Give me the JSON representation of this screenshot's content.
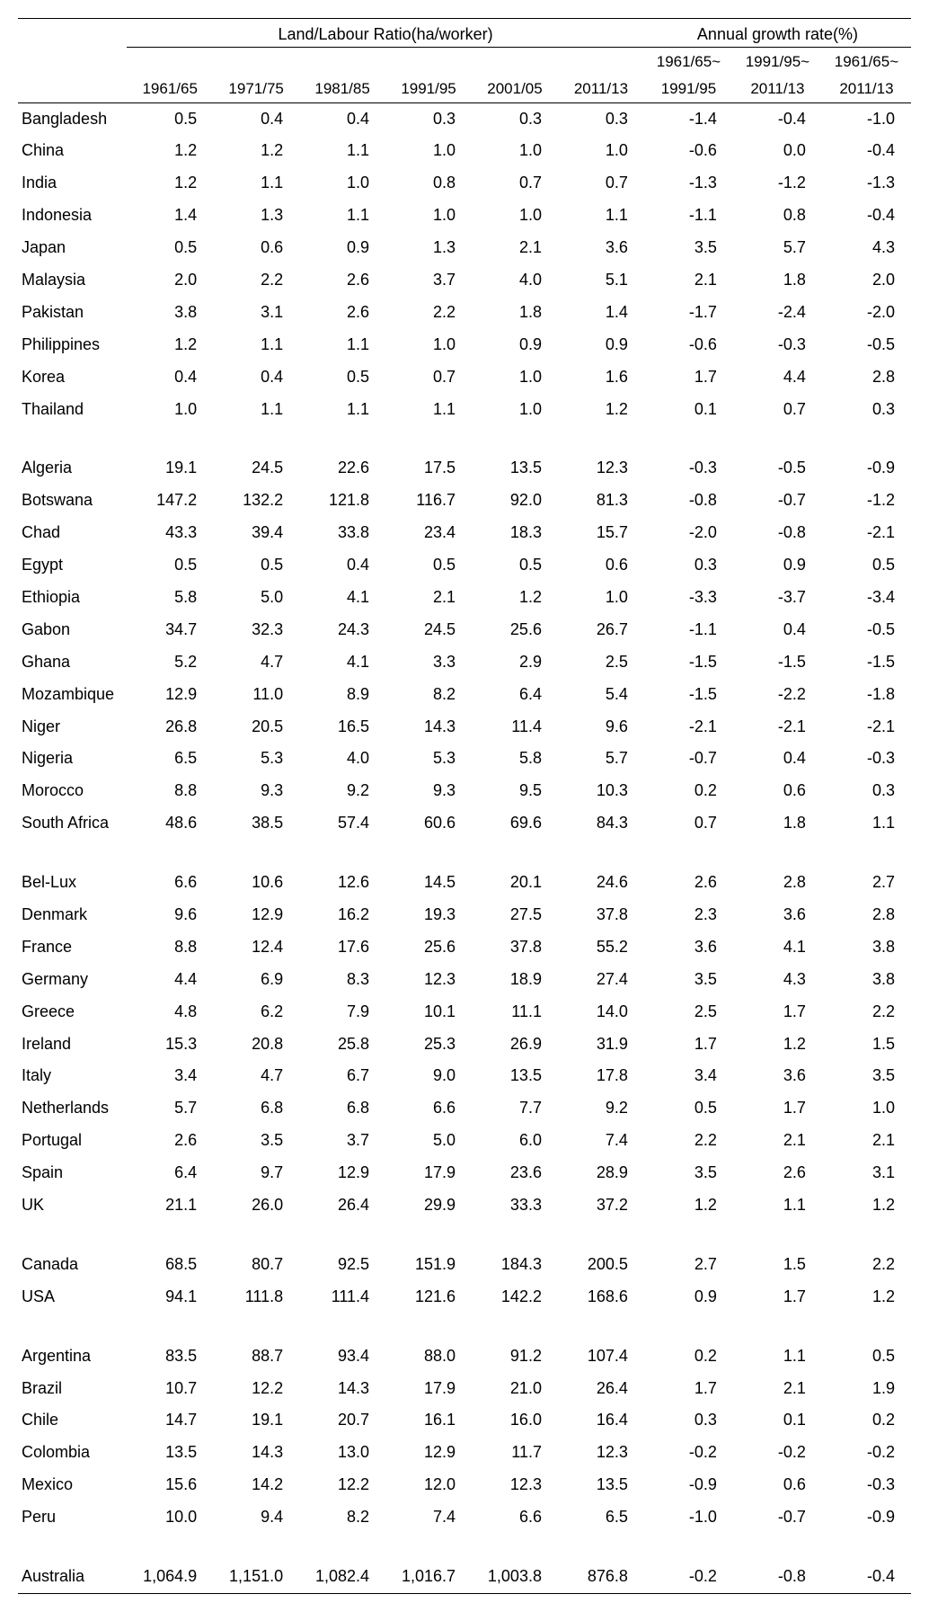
{
  "table": {
    "type": "table",
    "background_color": "#ffffff",
    "text_color": "#000000",
    "rule_color": "#000000",
    "font_family": "Segoe UI / sans-serif",
    "base_fontsize_pt": 13,
    "header": {
      "group_ratio_label": "Land/Labour Ratio(ha/worker)",
      "group_growth_label": "Annual growth rate(%)",
      "ratio_periods": [
        "1961/65",
        "1971/75",
        "1981/85",
        "1991/95",
        "2001/05",
        "2011/13"
      ],
      "growth_periods": [
        {
          "line1": "1961/65~",
          "line2": "1991/95"
        },
        {
          "line1": "1991/95~",
          "line2": "2011/13"
        },
        {
          "line1": "1961/65~",
          "line2": "2011/13"
        }
      ]
    },
    "columns": [
      "country",
      "r1961_65",
      "r1971_75",
      "r1981_85",
      "r1991_95",
      "r2001_05",
      "r2011_13",
      "g1961_1991",
      "g1991_2011",
      "g1961_2011"
    ],
    "groups": [
      {
        "rows": [
          {
            "country": "Bangladesh",
            "r": [
              "0.5",
              "0.4",
              "0.4",
              "0.3",
              "0.3",
              "0.3"
            ],
            "g": [
              "-1.4",
              "-0.4",
              "-1.0"
            ]
          },
          {
            "country": "China",
            "r": [
              "1.2",
              "1.2",
              "1.1",
              "1.0",
              "1.0",
              "1.0"
            ],
            "g": [
              "-0.6",
              "0.0",
              "-0.4"
            ]
          },
          {
            "country": "India",
            "r": [
              "1.2",
              "1.1",
              "1.0",
              "0.8",
              "0.7",
              "0.7"
            ],
            "g": [
              "-1.3",
              "-1.2",
              "-1.3"
            ]
          },
          {
            "country": "Indonesia",
            "r": [
              "1.4",
              "1.3",
              "1.1",
              "1.0",
              "1.0",
              "1.1"
            ],
            "g": [
              "-1.1",
              "0.8",
              "-0.4"
            ]
          },
          {
            "country": "Japan",
            "r": [
              "0.5",
              "0.6",
              "0.9",
              "1.3",
              "2.1",
              "3.6"
            ],
            "g": [
              "3.5",
              "5.7",
              "4.3"
            ]
          },
          {
            "country": "Malaysia",
            "r": [
              "2.0",
              "2.2",
              "2.6",
              "3.7",
              "4.0",
              "5.1"
            ],
            "g": [
              "2.1",
              "1.8",
              "2.0"
            ]
          },
          {
            "country": "Pakistan",
            "r": [
              "3.8",
              "3.1",
              "2.6",
              "2.2",
              "1.8",
              "1.4"
            ],
            "g": [
              "-1.7",
              "-2.4",
              "-2.0"
            ]
          },
          {
            "country": "Philippines",
            "r": [
              "1.2",
              "1.1",
              "1.1",
              "1.0",
              "0.9",
              "0.9"
            ],
            "g": [
              "-0.6",
              "-0.3",
              "-0.5"
            ]
          },
          {
            "country": "Korea",
            "r": [
              "0.4",
              "0.4",
              "0.5",
              "0.7",
              "1.0",
              "1.6"
            ],
            "g": [
              "1.7",
              "4.4",
              "2.8"
            ]
          },
          {
            "country": "Thailand",
            "r": [
              "1.0",
              "1.1",
              "1.1",
              "1.1",
              "1.0",
              "1.2"
            ],
            "g": [
              "0.1",
              "0.7",
              "0.3"
            ]
          }
        ]
      },
      {
        "rows": [
          {
            "country": "Algeria",
            "r": [
              "19.1",
              "24.5",
              "22.6",
              "17.5",
              "13.5",
              "12.3"
            ],
            "g": [
              "-0.3",
              "-0.5",
              "-0.9"
            ]
          },
          {
            "country": "Botswana",
            "r": [
              "147.2",
              "132.2",
              "121.8",
              "116.7",
              "92.0",
              "81.3"
            ],
            "g": [
              "-0.8",
              "-0.7",
              "-1.2"
            ]
          },
          {
            "country": "Chad",
            "r": [
              "43.3",
              "39.4",
              "33.8",
              "23.4",
              "18.3",
              "15.7"
            ],
            "g": [
              "-2.0",
              "-0.8",
              "-2.1"
            ]
          },
          {
            "country": "Egypt",
            "r": [
              "0.5",
              "0.5",
              "0.4",
              "0.5",
              "0.5",
              "0.6"
            ],
            "g": [
              "0.3",
              "0.9",
              "0.5"
            ]
          },
          {
            "country": "Ethiopia",
            "r": [
              "5.8",
              "5.0",
              "4.1",
              "2.1",
              "1.2",
              "1.0"
            ],
            "g": [
              "-3.3",
              "-3.7",
              "-3.4"
            ]
          },
          {
            "country": "Gabon",
            "r": [
              "34.7",
              "32.3",
              "24.3",
              "24.5",
              "25.6",
              "26.7"
            ],
            "g": [
              "-1.1",
              "0.4",
              "-0.5"
            ]
          },
          {
            "country": "Ghana",
            "r": [
              "5.2",
              "4.7",
              "4.1",
              "3.3",
              "2.9",
              "2.5"
            ],
            "g": [
              "-1.5",
              "-1.5",
              "-1.5"
            ]
          },
          {
            "country": "Mozambique",
            "r": [
              "12.9",
              "11.0",
              "8.9",
              "8.2",
              "6.4",
              "5.4"
            ],
            "g": [
              "-1.5",
              "-2.2",
              "-1.8"
            ]
          },
          {
            "country": "Niger",
            "r": [
              "26.8",
              "20.5",
              "16.5",
              "14.3",
              "11.4",
              "9.6"
            ],
            "g": [
              "-2.1",
              "-2.1",
              "-2.1"
            ]
          },
          {
            "country": "Nigeria",
            "r": [
              "6.5",
              "5.3",
              "4.0",
              "5.3",
              "5.8",
              "5.7"
            ],
            "g": [
              "-0.7",
              "0.4",
              "-0.3"
            ]
          },
          {
            "country": "Morocco",
            "r": [
              "8.8",
              "9.3",
              "9.2",
              "9.3",
              "9.5",
              "10.3"
            ],
            "g": [
              "0.2",
              "0.6",
              "0.3"
            ]
          },
          {
            "country": "South Africa",
            "r": [
              "48.6",
              "38.5",
              "57.4",
              "60.6",
              "69.6",
              "84.3"
            ],
            "g": [
              "0.7",
              "1.8",
              "1.1"
            ]
          }
        ]
      },
      {
        "rows": [
          {
            "country": "Bel-Lux",
            "r": [
              "6.6",
              "10.6",
              "12.6",
              "14.5",
              "20.1",
              "24.6"
            ],
            "g": [
              "2.6",
              "2.8",
              "2.7"
            ]
          },
          {
            "country": "Denmark",
            "r": [
              "9.6",
              "12.9",
              "16.2",
              "19.3",
              "27.5",
              "37.8"
            ],
            "g": [
              "2.3",
              "3.6",
              "2.8"
            ]
          },
          {
            "country": "France",
            "r": [
              "8.8",
              "12.4",
              "17.6",
              "25.6",
              "37.8",
              "55.2"
            ],
            "g": [
              "3.6",
              "4.1",
              "3.8"
            ]
          },
          {
            "country": "Germany",
            "r": [
              "4.4",
              "6.9",
              "8.3",
              "12.3",
              "18.9",
              "27.4"
            ],
            "g": [
              "3.5",
              "4.3",
              "3.8"
            ]
          },
          {
            "country": "Greece",
            "r": [
              "4.8",
              "6.2",
              "7.9",
              "10.1",
              "11.1",
              "14.0"
            ],
            "g": [
              "2.5",
              "1.7",
              "2.2"
            ]
          },
          {
            "country": "Ireland",
            "r": [
              "15.3",
              "20.8",
              "25.8",
              "25.3",
              "26.9",
              "31.9"
            ],
            "g": [
              "1.7",
              "1.2",
              "1.5"
            ]
          },
          {
            "country": "Italy",
            "r": [
              "3.4",
              "4.7",
              "6.7",
              "9.0",
              "13.5",
              "17.8"
            ],
            "g": [
              "3.4",
              "3.6",
              "3.5"
            ]
          },
          {
            "country": "Netherlands",
            "r": [
              "5.7",
              "6.8",
              "6.8",
              "6.6",
              "7.7",
              "9.2"
            ],
            "g": [
              "0.5",
              "1.7",
              "1.0"
            ]
          },
          {
            "country": "Portugal",
            "r": [
              "2.6",
              "3.5",
              "3.7",
              "5.0",
              "6.0",
              "7.4"
            ],
            "g": [
              "2.2",
              "2.1",
              "2.1"
            ]
          },
          {
            "country": "Spain",
            "r": [
              "6.4",
              "9.7",
              "12.9",
              "17.9",
              "23.6",
              "28.9"
            ],
            "g": [
              "3.5",
              "2.6",
              "3.1"
            ]
          },
          {
            "country": "UK",
            "r": [
              "21.1",
              "26.0",
              "26.4",
              "29.9",
              "33.3",
              "37.2"
            ],
            "g": [
              "1.2",
              "1.1",
              "1.2"
            ]
          }
        ]
      },
      {
        "rows": [
          {
            "country": "Canada",
            "r": [
              "68.5",
              "80.7",
              "92.5",
              "151.9",
              "184.3",
              "200.5"
            ],
            "g": [
              "2.7",
              "1.5",
              "2.2"
            ]
          },
          {
            "country": "USA",
            "r": [
              "94.1",
              "111.8",
              "111.4",
              "121.6",
              "142.2",
              "168.6"
            ],
            "g": [
              "0.9",
              "1.7",
              "1.2"
            ]
          }
        ]
      },
      {
        "rows": [
          {
            "country": "Argentina",
            "r": [
              "83.5",
              "88.7",
              "93.4",
              "88.0",
              "91.2",
              "107.4"
            ],
            "g": [
              "0.2",
              "1.1",
              "0.5"
            ]
          },
          {
            "country": "Brazil",
            "r": [
              "10.7",
              "12.2",
              "14.3",
              "17.9",
              "21.0",
              "26.4"
            ],
            "g": [
              "1.7",
              "2.1",
              "1.9"
            ]
          },
          {
            "country": "Chile",
            "r": [
              "14.7",
              "19.1",
              "20.7",
              "16.1",
              "16.0",
              "16.4"
            ],
            "g": [
              "0.3",
              "0.1",
              "0.2"
            ]
          },
          {
            "country": "Colombia",
            "r": [
              "13.5",
              "14.3",
              "13.0",
              "12.9",
              "11.7",
              "12.3"
            ],
            "g": [
              "-0.2",
              "-0.2",
              "-0.2"
            ]
          },
          {
            "country": "Mexico",
            "r": [
              "15.6",
              "14.2",
              "12.2",
              "12.0",
              "12.3",
              "13.5"
            ],
            "g": [
              "-0.9",
              "0.6",
              "-0.3"
            ]
          },
          {
            "country": "Peru",
            "r": [
              "10.0",
              "9.4",
              "8.2",
              "7.4",
              "6.6",
              "6.5"
            ],
            "g": [
              "-1.0",
              "-0.7",
              "-0.9"
            ]
          }
        ]
      },
      {
        "rows": [
          {
            "country": "Australia",
            "r": [
              "1,064.9",
              "1,151.0",
              "1,082.4",
              "1,016.7",
              "1,003.8",
              "876.8"
            ],
            "g": [
              "-0.2",
              "-0.8",
              "-0.4"
            ]
          }
        ]
      }
    ]
  }
}
